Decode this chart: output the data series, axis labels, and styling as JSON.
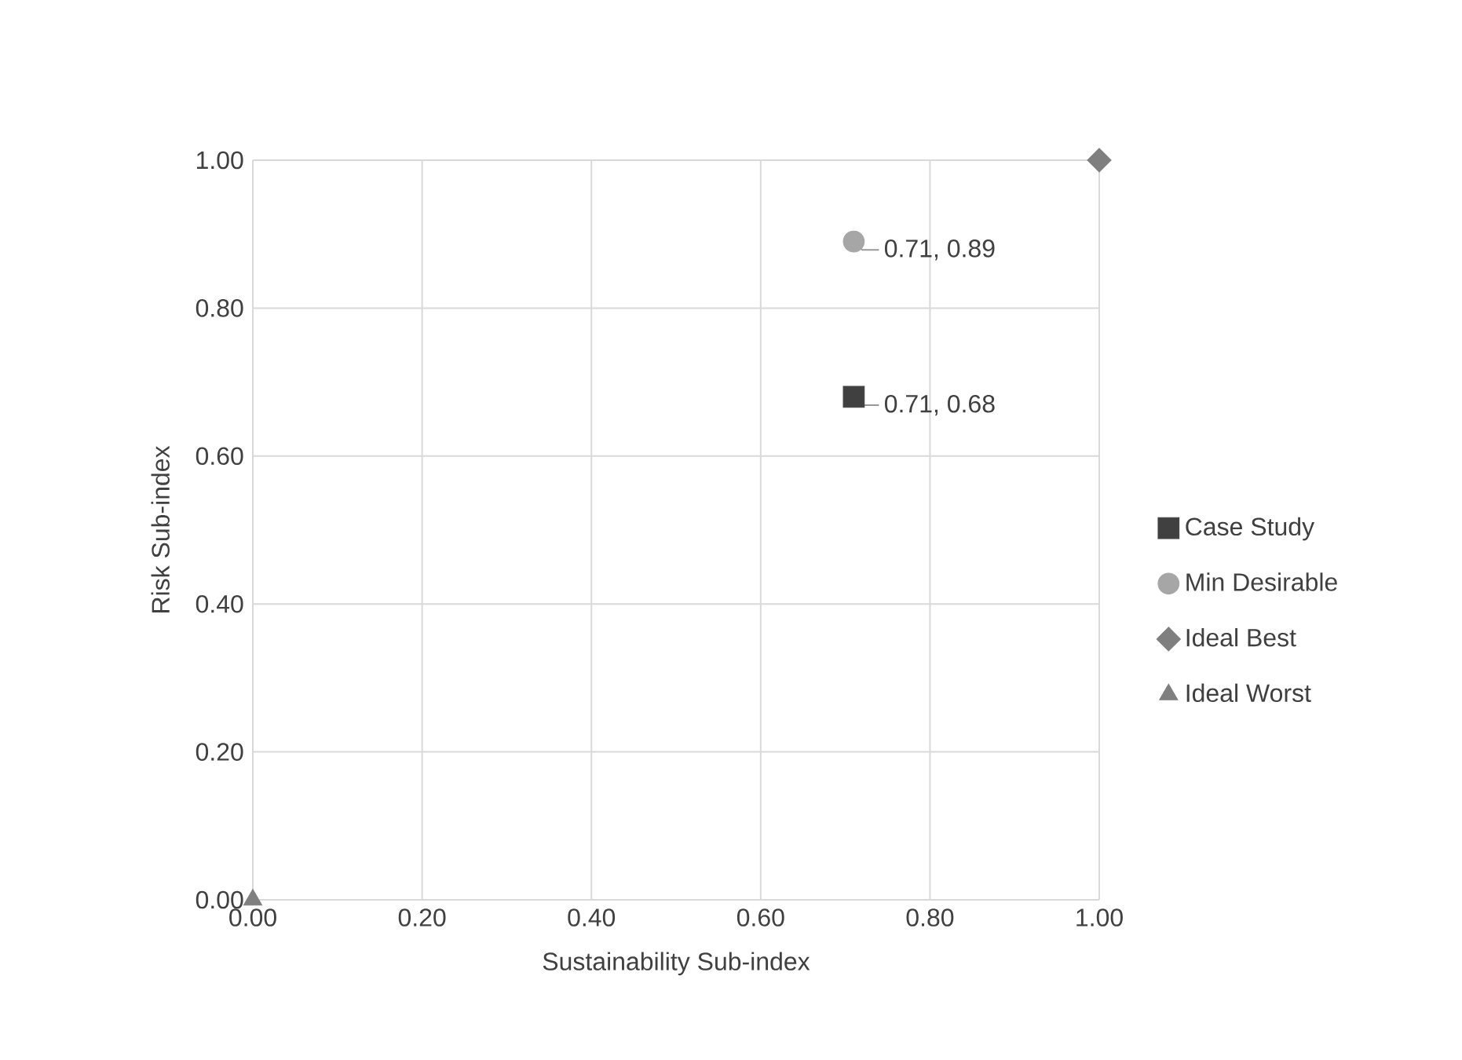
{
  "chart_data": {
    "type": "scatter",
    "xlabel": "Sustainability Sub-index",
    "ylabel": "Risk Sub-index",
    "xlim": [
      0,
      1
    ],
    "ylim": [
      0,
      1
    ],
    "xticks": [
      {
        "value": 0,
        "label": "0.00"
      },
      {
        "value": 0.2,
        "label": "0.20"
      },
      {
        "value": 0.4,
        "label": "0.40"
      },
      {
        "value": 0.6,
        "label": "0.60"
      },
      {
        "value": 0.8,
        "label": "0.80"
      },
      {
        "value": 1,
        "label": "1.00"
      }
    ],
    "yticks": [
      {
        "value": 0,
        "label": "0.00"
      },
      {
        "value": 0.2,
        "label": "0.20"
      },
      {
        "value": 0.4,
        "label": "0.40"
      },
      {
        "value": 0.6,
        "label": "0.60"
      },
      {
        "value": 0.8,
        "label": "0.80"
      },
      {
        "value": 1,
        "label": "1.00"
      }
    ],
    "grid": true,
    "legend": "right",
    "series": [
      {
        "name": "Case Study",
        "color": "#404040",
        "marker": "square",
        "x": [
          0.71
        ],
        "values": [
          0.68
        ],
        "value_labels": [
          "0.71, 0.68"
        ]
      },
      {
        "name": "Min Desirable",
        "color": "#a6a6a6",
        "marker": "circle",
        "x": [
          0.71
        ],
        "values": [
          0.89
        ],
        "value_labels": [
          "0.71, 0.89"
        ]
      },
      {
        "name": "Ideal Best",
        "color": "#7f7f7f",
        "marker": "diamond",
        "x": [
          1
        ],
        "values": [
          1
        ]
      },
      {
        "name": "Ideal Worst",
        "color": "#7f7f7f",
        "marker": "triangle",
        "x": [
          0
        ],
        "values": [
          0
        ]
      }
    ]
  }
}
